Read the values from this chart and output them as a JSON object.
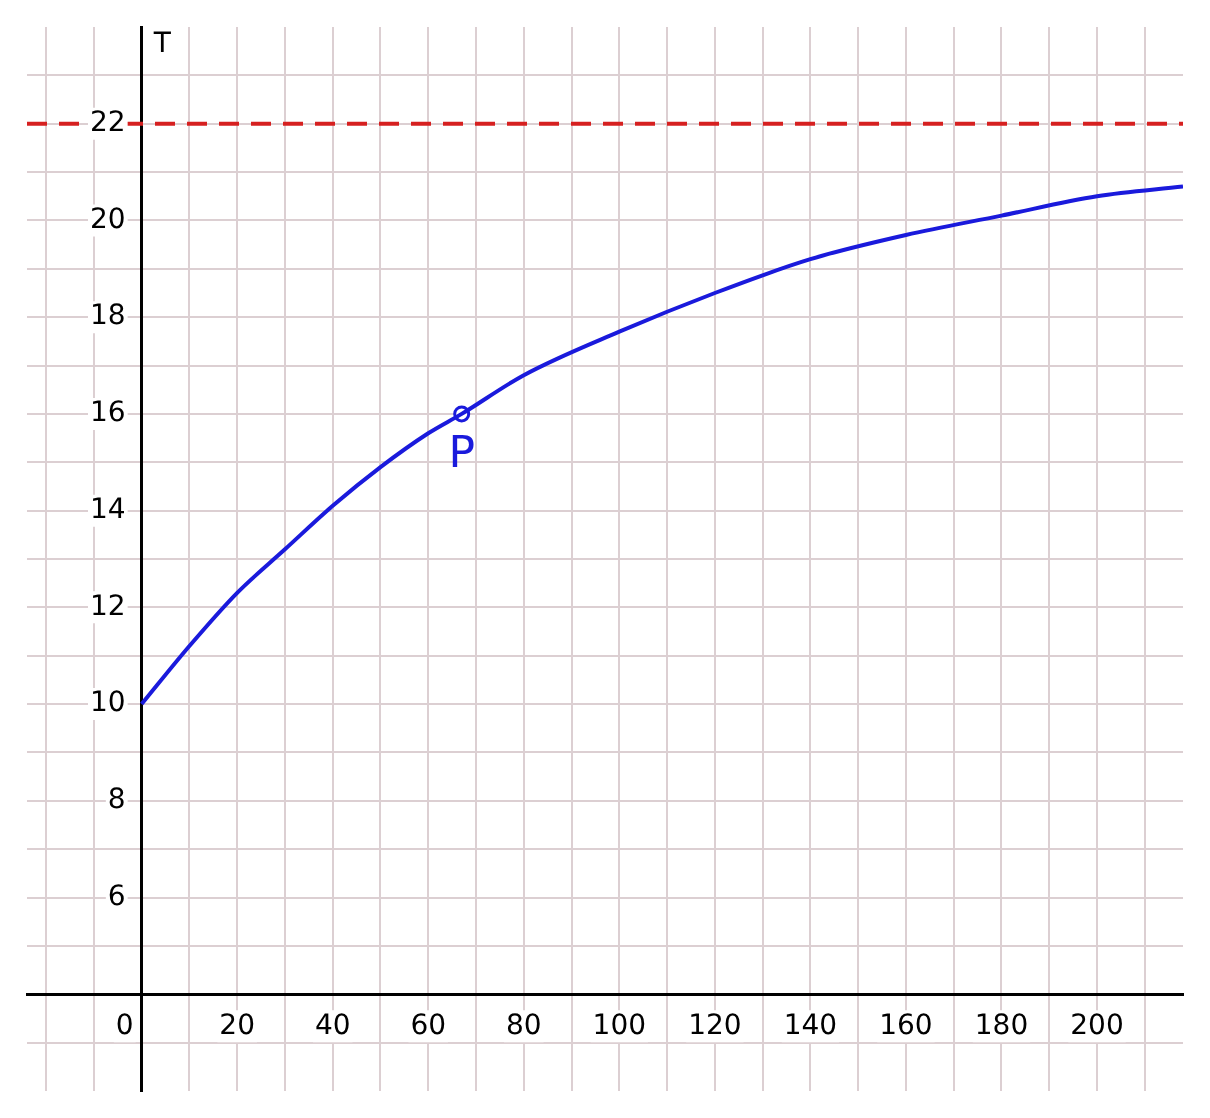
{
  "chart_data": {
    "type": "line",
    "ylabel": "T",
    "xlim": [
      -24,
      218
    ],
    "ylim": [
      2,
      24
    ],
    "xticks": [
      {
        "value": -20,
        "label": null
      },
      {
        "value": -10,
        "label": null
      },
      0,
      {
        "value": 10,
        "label": null
      },
      20,
      {
        "value": 30,
        "label": null
      },
      40,
      {
        "value": 50,
        "label": null
      },
      60,
      {
        "value": 70,
        "label": null
      },
      80,
      {
        "value": 90,
        "label": null
      },
      100,
      {
        "value": 110,
        "label": null
      },
      120,
      {
        "value": 130,
        "label": null
      },
      140,
      {
        "value": 150,
        "label": null
      },
      160,
      {
        "value": 170,
        "label": null
      },
      180,
      {
        "value": 190,
        "label": null
      },
      200,
      {
        "value": 210,
        "label": null
      }
    ],
    "yticks": [
      {
        "value": 3,
        "label": null
      },
      {
        "value": 4,
        "label": null
      },
      {
        "value": 5,
        "label": null
      },
      6,
      {
        "value": 7,
        "label": null
      },
      8,
      {
        "value": 9,
        "label": null
      },
      10,
      {
        "value": 11,
        "label": null
      },
      12,
      {
        "value": 13,
        "label": null
      },
      14,
      {
        "value": 15,
        "label": null
      },
      16,
      {
        "value": 17,
        "label": null
      },
      18,
      {
        "value": 19,
        "label": null
      },
      20,
      {
        "value": 21,
        "label": null
      },
      22,
      {
        "value": 23,
        "label": null
      }
    ],
    "grid": true,
    "series": [
      {
        "color": "#1a1adc",
        "marker": "none",
        "x": [
          0,
          10,
          20,
          30,
          40,
          50,
          60,
          67,
          80,
          100,
          120,
          140,
          160,
          180,
          200,
          218
        ],
        "values": [
          10.0,
          11.2,
          12.3,
          13.2,
          14.1,
          14.9,
          15.6,
          16.0,
          16.8,
          17.7,
          18.5,
          19.2,
          19.7,
          20.1,
          20.5,
          20.7
        ]
      },
      {
        "type": "scatter",
        "color": "#1a1adc",
        "marker": "circle",
        "x": [
          67
        ],
        "values": [
          16
        ]
      }
    ],
    "ref_lines": [
      {
        "axis": "y",
        "value": 22,
        "color": "#d62020",
        "line_style": "dashed"
      }
    ],
    "annotations": [
      {
        "text": "P",
        "x": 67,
        "y": 16
      }
    ]
  }
}
